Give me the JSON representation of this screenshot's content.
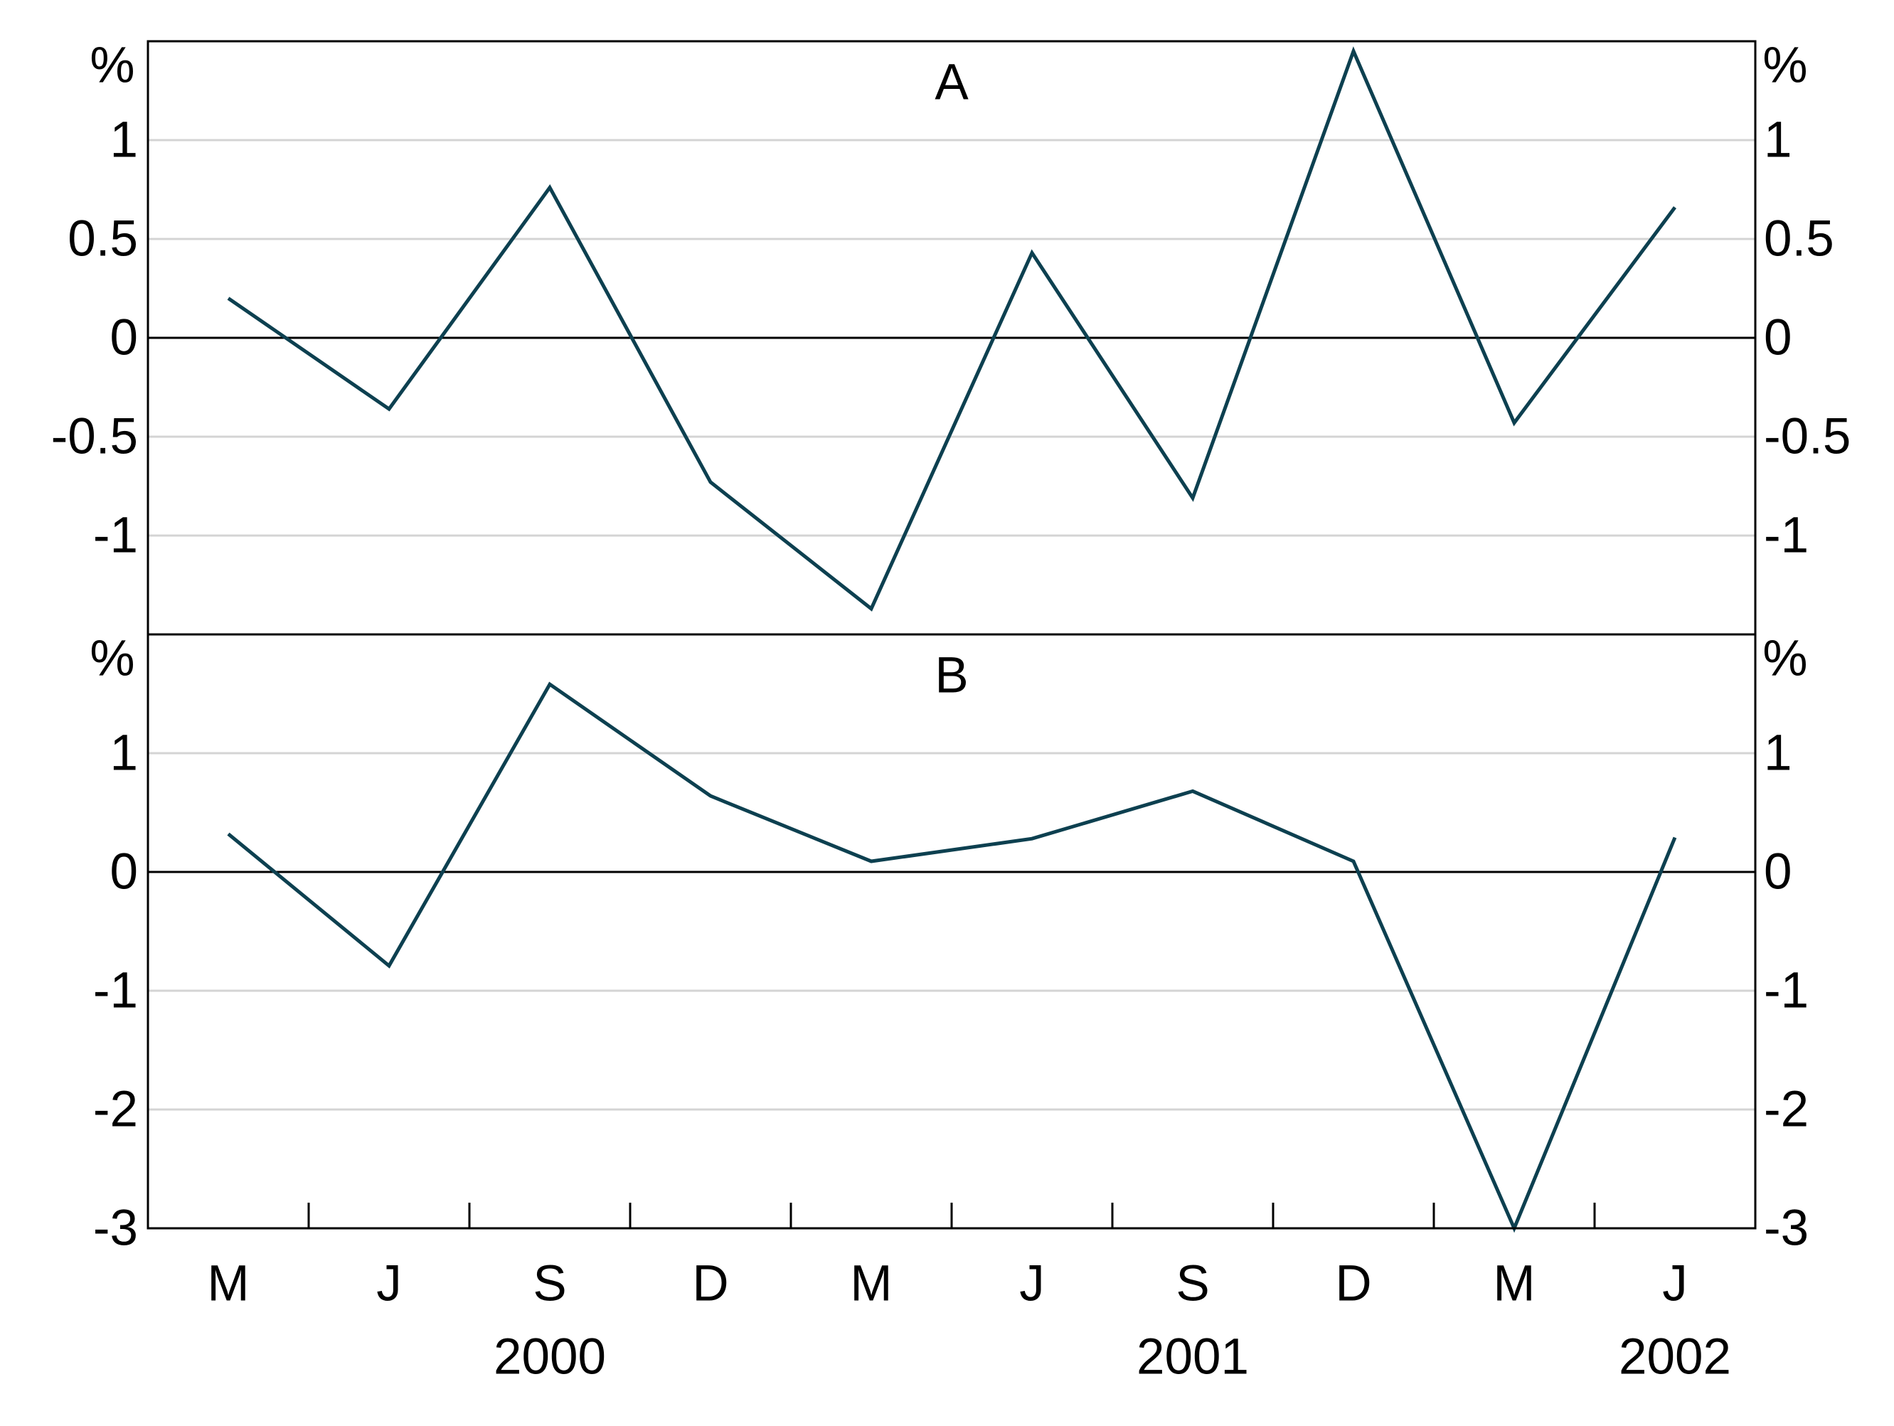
{
  "chart_data": [
    {
      "type": "line",
      "title": "A",
      "unit": "%",
      "ylim": [
        -1.5,
        1.5
      ],
      "yticks": [
        1,
        0.5,
        0,
        -0.5,
        -1
      ],
      "ytick_labels": [
        "1",
        "0.5",
        "0",
        "-0.5",
        "-1"
      ],
      "grid": true,
      "color": "#0d4050",
      "x": [
        "2000-03",
        "2000-06",
        "2000-09",
        "2000-12",
        "2001-03",
        "2001-06",
        "2001-09",
        "2001-12",
        "2002-03",
        "2002-06"
      ],
      "values": [
        0.2,
        -0.36,
        0.76,
        -0.73,
        -1.37,
        0.43,
        -0.81,
        1.45,
        -0.43,
        0.66
      ]
    },
    {
      "type": "line",
      "title": "B",
      "unit": "%",
      "ylim": [
        -3,
        2
      ],
      "yticks": [
        1,
        0,
        -1,
        -2,
        -3
      ],
      "ytick_labels": [
        "1",
        "0",
        "-1",
        "-2",
        "-3"
      ],
      "grid": true,
      "color": "#0d4050",
      "x": [
        "2000-03",
        "2000-06",
        "2000-09",
        "2000-12",
        "2001-03",
        "2001-06",
        "2001-09",
        "2001-12",
        "2002-03",
        "2002-06"
      ],
      "values": [
        0.32,
        -0.79,
        1.58,
        0.64,
        0.09,
        0.28,
        0.68,
        0.09,
        -3.0,
        0.29
      ]
    }
  ],
  "x_axis": {
    "month_labels": [
      "M",
      "J",
      "S",
      "D",
      "M",
      "J",
      "S",
      "D",
      "M",
      "J"
    ],
    "years": [
      {
        "label": "2000",
        "center_month": 2.5
      },
      {
        "label": "2001",
        "center_month": 6.5
      },
      {
        "label": "2002",
        "center_month": 9.5
      }
    ]
  }
}
